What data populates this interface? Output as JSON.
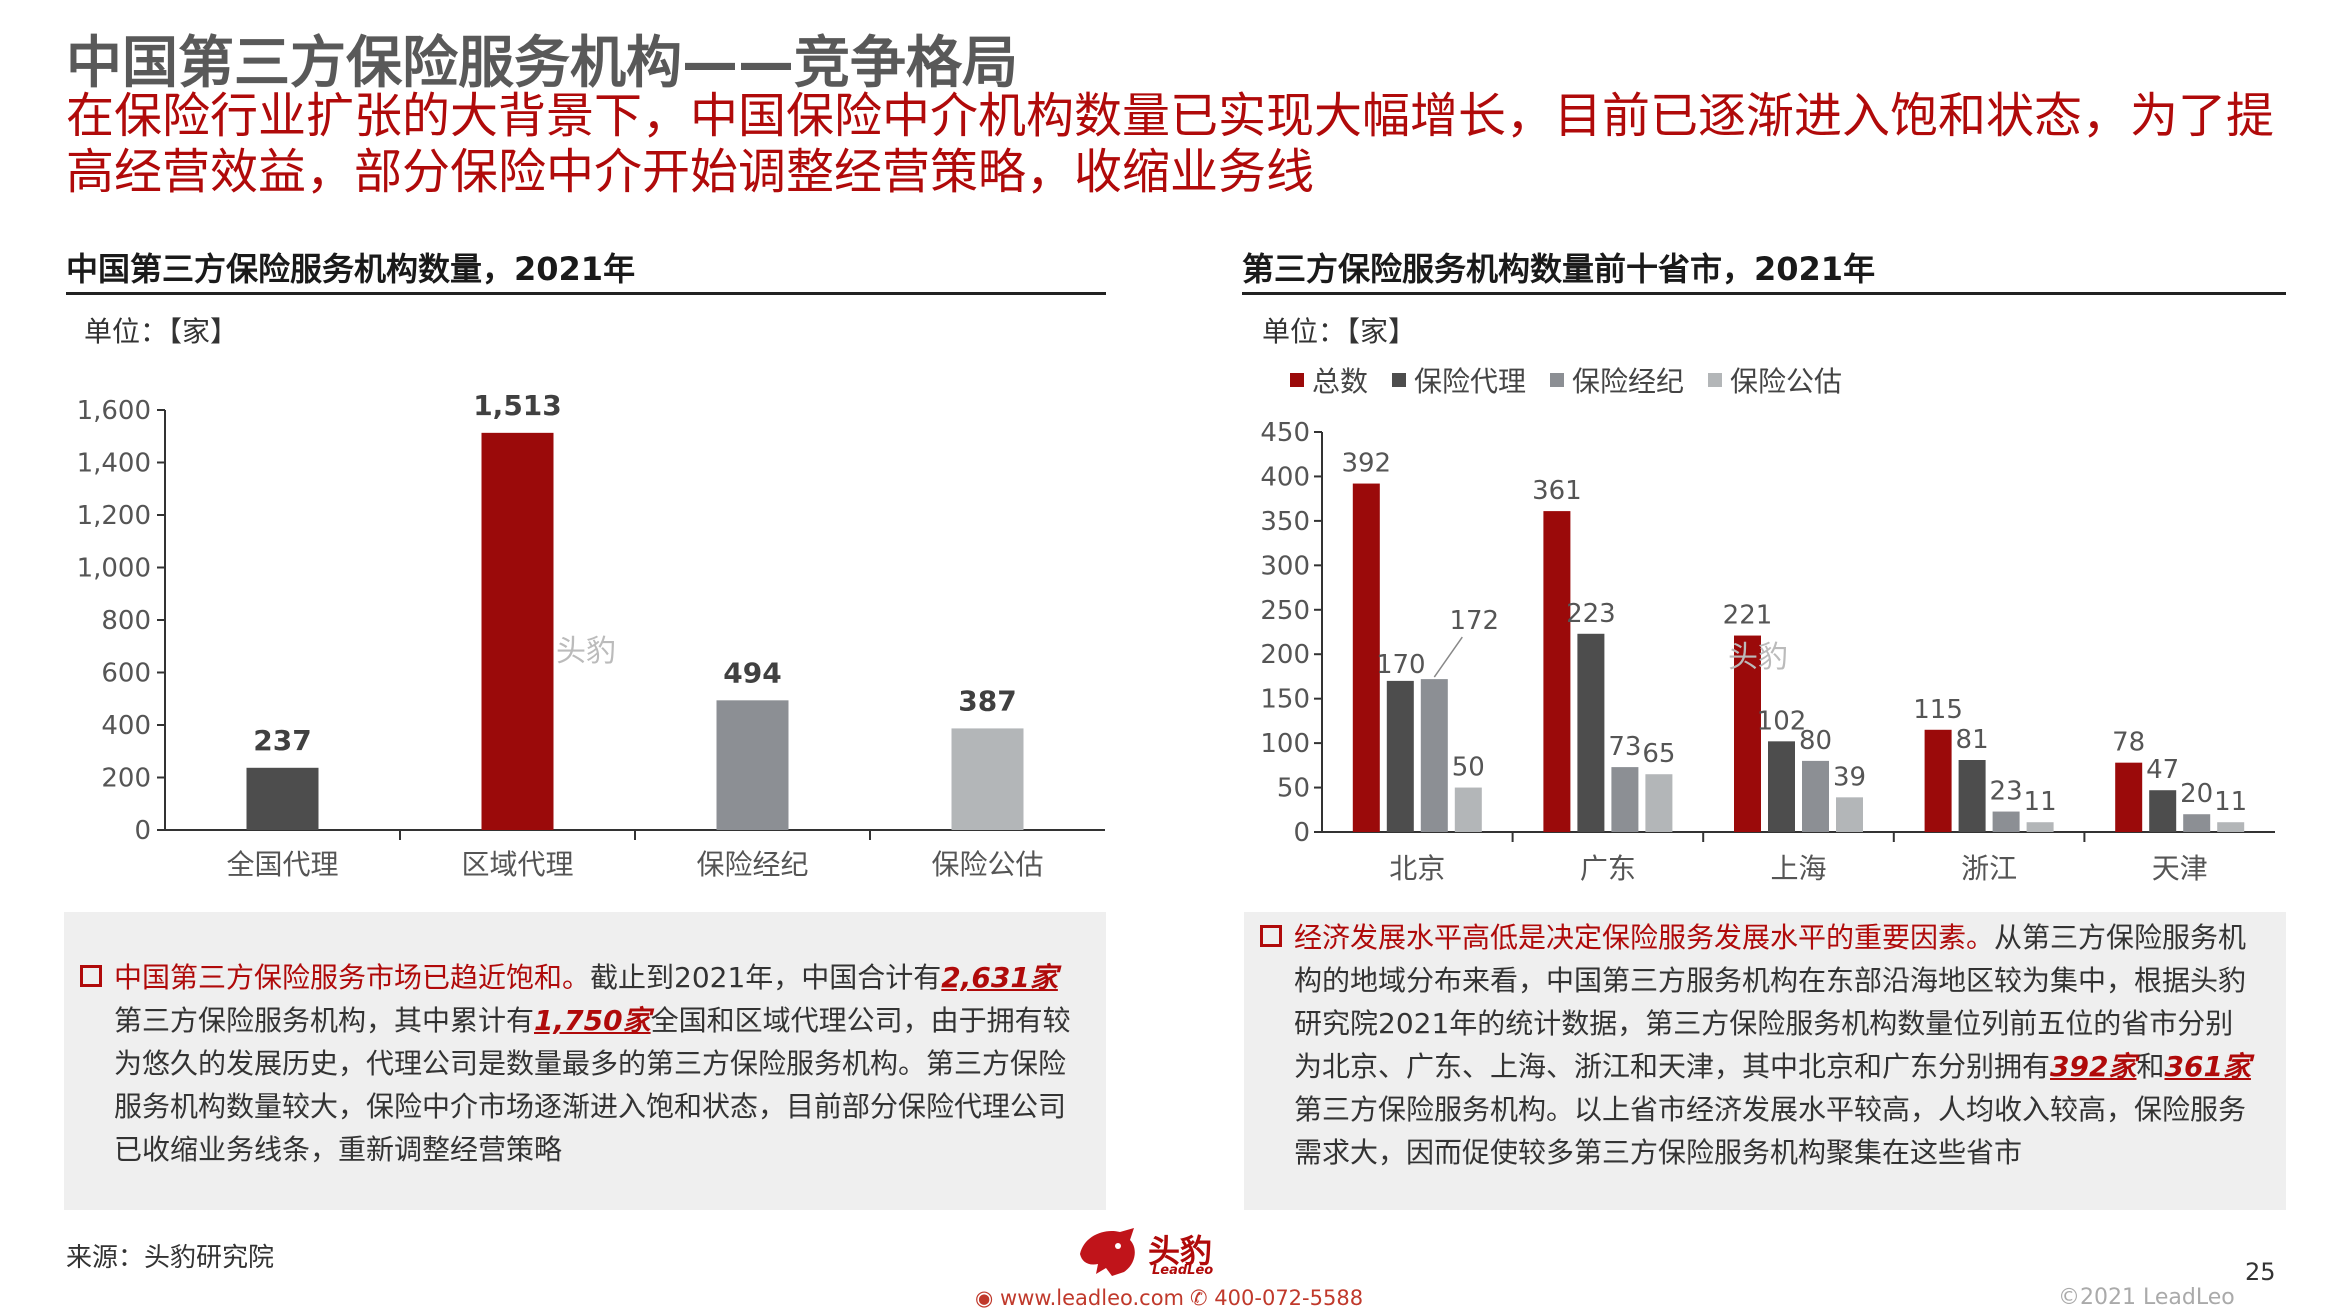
{
  "header": {
    "title": "中国第三方保险服务机构——竞争格局",
    "subtitle": "在保险行业扩张的大背景下，中国保险中介机构数量已实现大幅增长，目前已逐渐进入饱和状态，为了提高经营效益，部分保险中介开始调整经营策略，收缩业务线"
  },
  "left_panel": {
    "title": "中国第三方保险服务机构数量，2021年",
    "unit": "单位：【家】",
    "watermark": "头豹",
    "desc": {
      "lead": "中国第三方保险服务市场已趋近饱和。",
      "t1": "截止到2021年，中国合计有",
      "h1": "2,631家",
      "t2": "第三方保险服务机构，其中累计有",
      "h2": "1,750家",
      "t3": "全国和区域代理公司，由于拥有较为悠久的发展历史，代理公司是数量最多的第三方保险服务机构。第三方保险服务机构数量较大，保险中介市场逐渐进入饱和状态，目前部分保险代理公司已收缩业务线条，重新调整经营策略"
    }
  },
  "right_panel": {
    "title": "第三方保险服务机构数量前十省市，2021年",
    "unit": "单位：【家】",
    "watermark": "头豹",
    "desc": {
      "lead": "经济发展水平高低是决定保险服务发展水平的重要因素。",
      "t1": "从第三方保险服务机构的地域分布来看，中国第三方服务机构在东部沿海地区较为集中，根据头豹研究院2021年的统计数据，第三方保险服务机构数量位列前五位的省市分别为北京、广东、上海、浙江和天津，其中北京和广东分别拥有",
      "h1": "392家",
      "t2": "和",
      "h2": "361家",
      "t3": "第三方保险服务机构。以上省市经济发展水平较高，人均收入较高，保险服务需求大，因而促使较多第三方保险服务机构聚集在这些省市"
    }
  },
  "chart_data": [
    {
      "type": "bar",
      "categories": [
        "全国代理",
        "区域代理",
        "保险经纪",
        "保险公估"
      ],
      "values": [
        237,
        1513,
        494,
        387
      ],
      "value_labels": [
        "237",
        "1,513",
        "494",
        "387"
      ],
      "colors": [
        "#4d4d4d",
        "#9b0a0a",
        "#8c8f94",
        "#b3b6b8"
      ],
      "ylim": [
        0,
        1600
      ],
      "yticks": [
        0,
        200,
        400,
        600,
        800,
        1000,
        1200,
        1400,
        1600
      ],
      "ytick_labels": [
        "0",
        "200",
        "400",
        "600",
        "800",
        "1,000",
        "1,200",
        "1,400",
        "1,600"
      ],
      "grid": false
    },
    {
      "type": "bar",
      "categories": [
        "北京",
        "广东",
        "上海",
        "浙江",
        "天津"
      ],
      "series": [
        {
          "name": "总数",
          "values": [
            392,
            361,
            221,
            115,
            78
          ],
          "color": "#9b0a0a"
        },
        {
          "name": "保险代理",
          "values": [
            170,
            223,
            102,
            81,
            47
          ],
          "color": "#4d4d4d"
        },
        {
          "name": "保险经纪",
          "values": [
            172,
            73,
            80,
            23,
            20
          ],
          "color": "#8c8f94"
        },
        {
          "name": "保险公估",
          "values": [
            50,
            65,
            39,
            11,
            11
          ],
          "color": "#b3b6b8"
        }
      ],
      "ylim": [
        0,
        450
      ],
      "yticks": [
        0,
        50,
        100,
        150,
        200,
        250,
        300,
        350,
        400,
        450
      ],
      "legend_position": "top-left",
      "grid": false
    }
  ],
  "footer": {
    "source": "来源：头豹研究院",
    "logo": "头豹",
    "logo_sub": "LeadLeo",
    "website": "www.leadleo.com",
    "phone": "400-072-5588",
    "copyright": "©2021 LeadLeo",
    "page_number": "25"
  }
}
